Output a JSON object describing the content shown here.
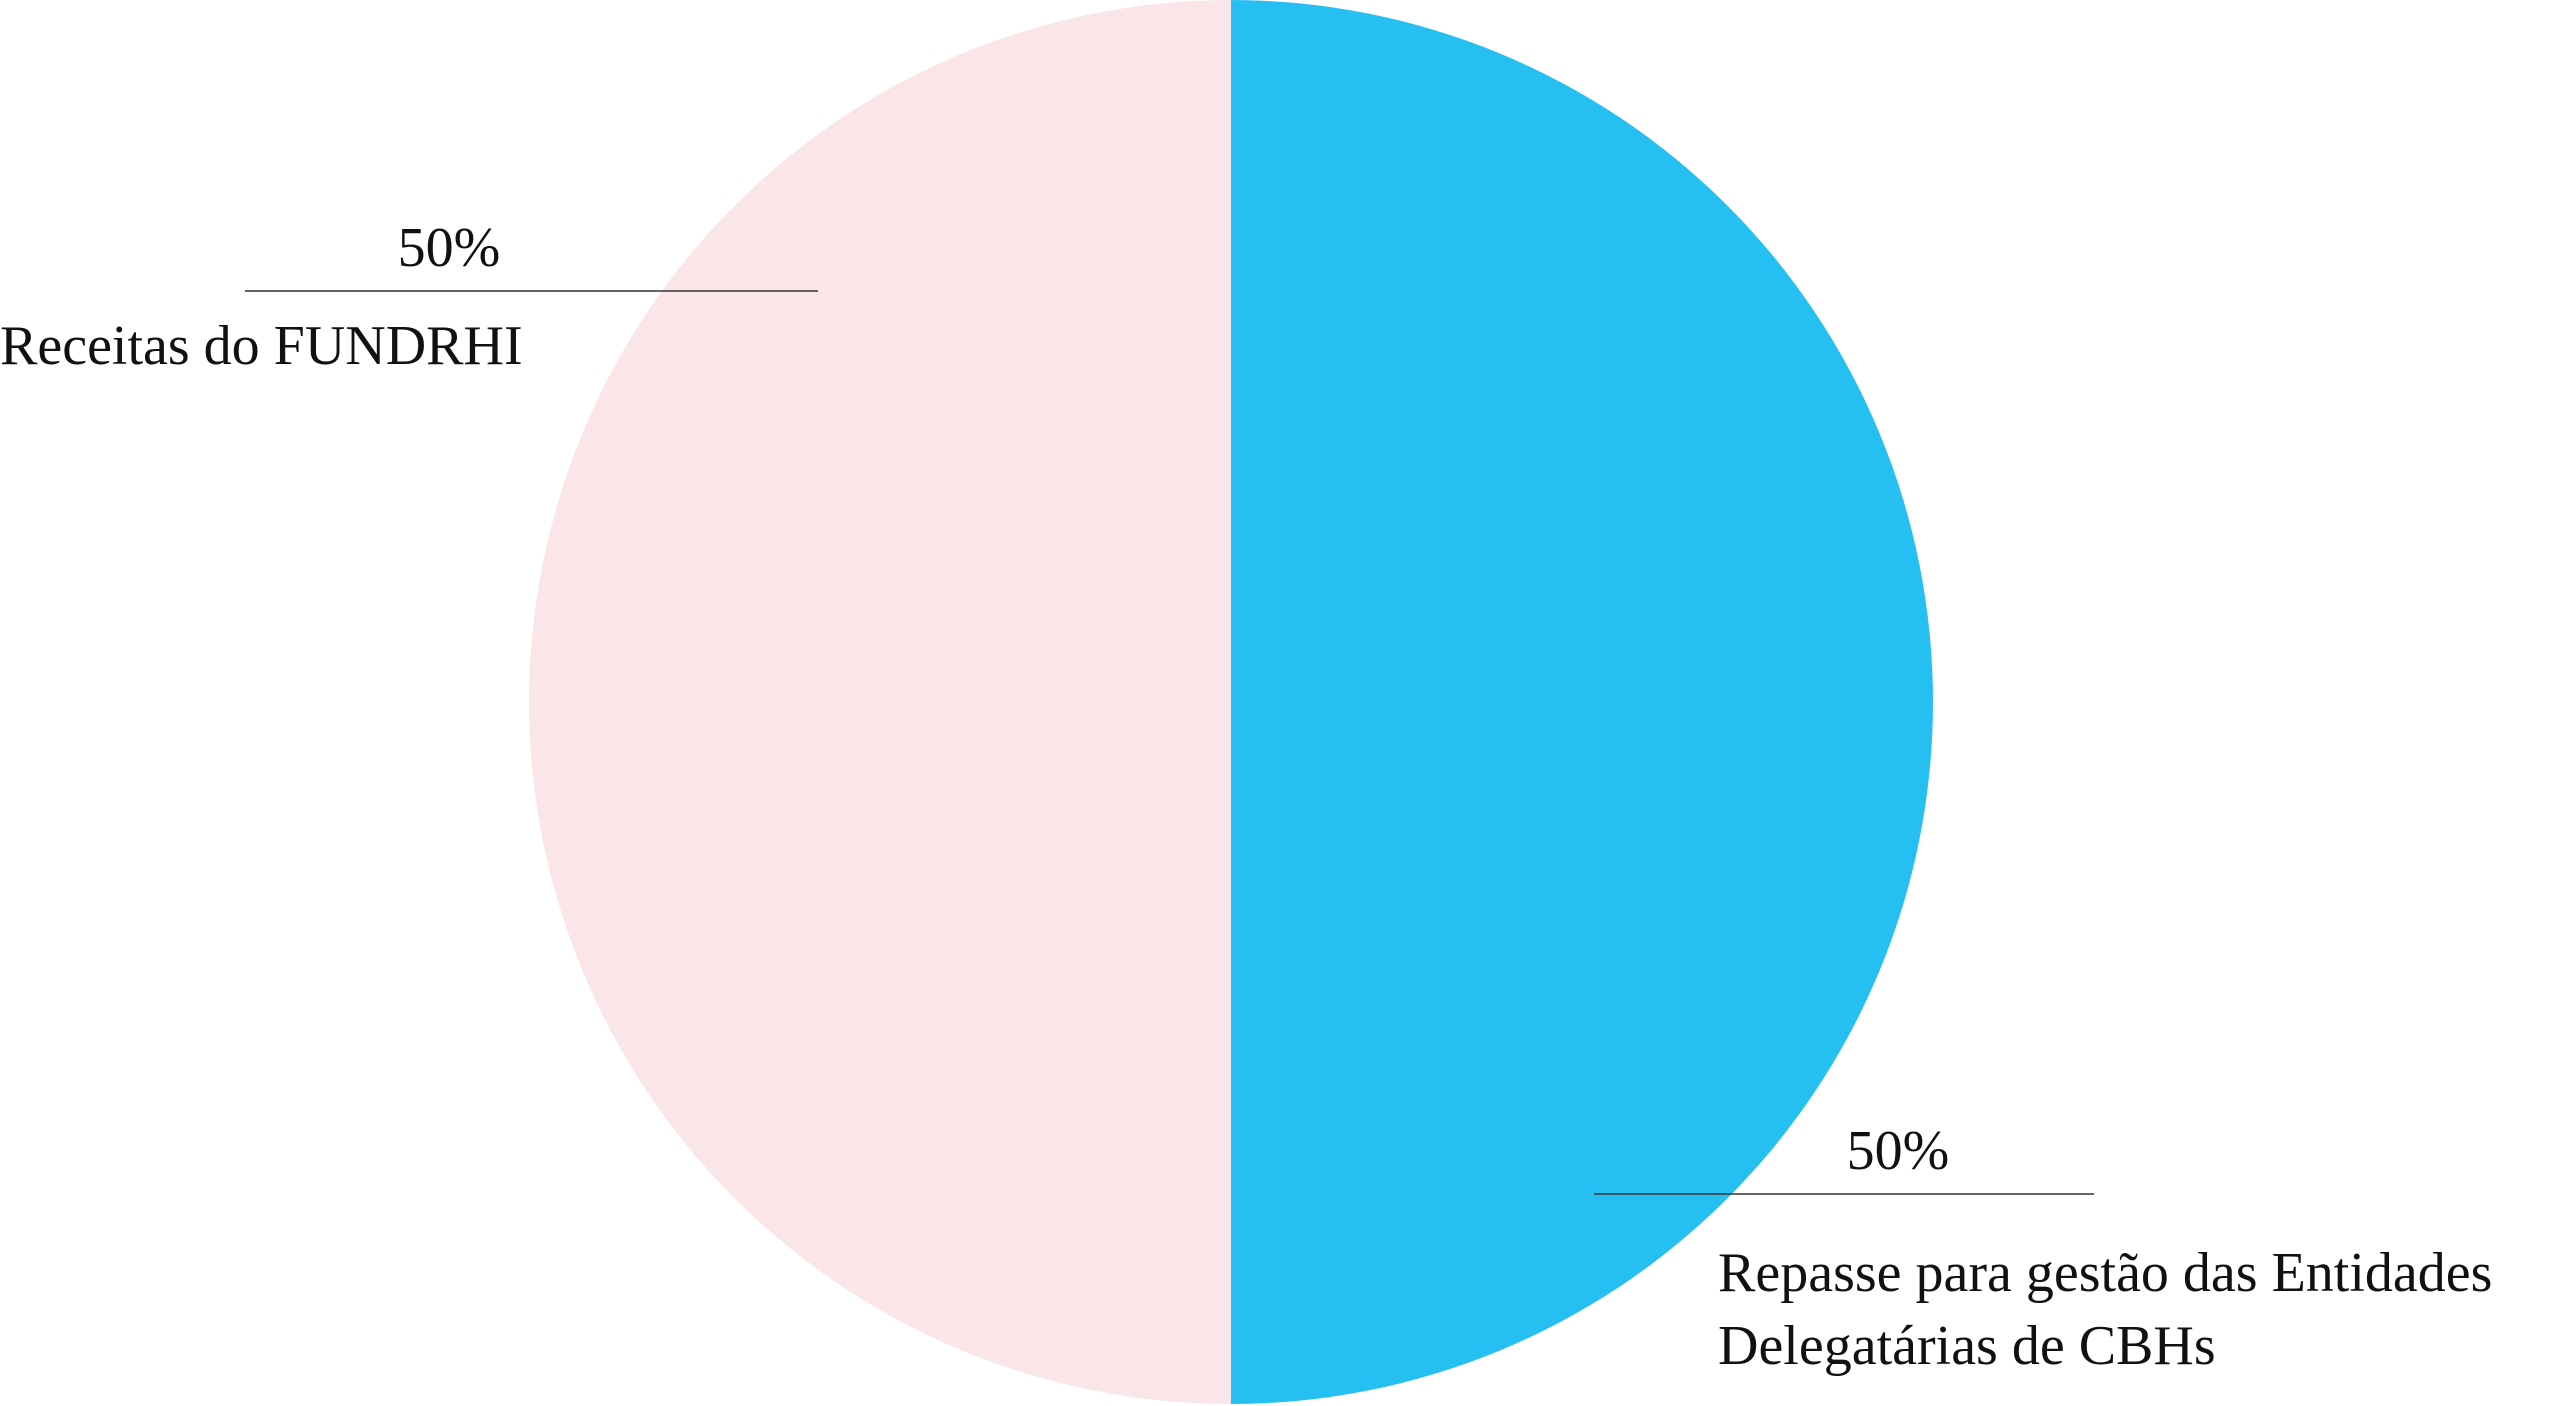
{
  "chart_data": {
    "type": "pie",
    "categories": [
      "Receitas do FUNDRHI",
      "Repasse para gestão das Entidades Delegatárias de CBHs"
    ],
    "values": [
      50,
      50
    ],
    "value_labels": [
      "50%",
      "50%"
    ],
    "colors": [
      "#fae6e8",
      "#25bff2"
    ]
  }
}
